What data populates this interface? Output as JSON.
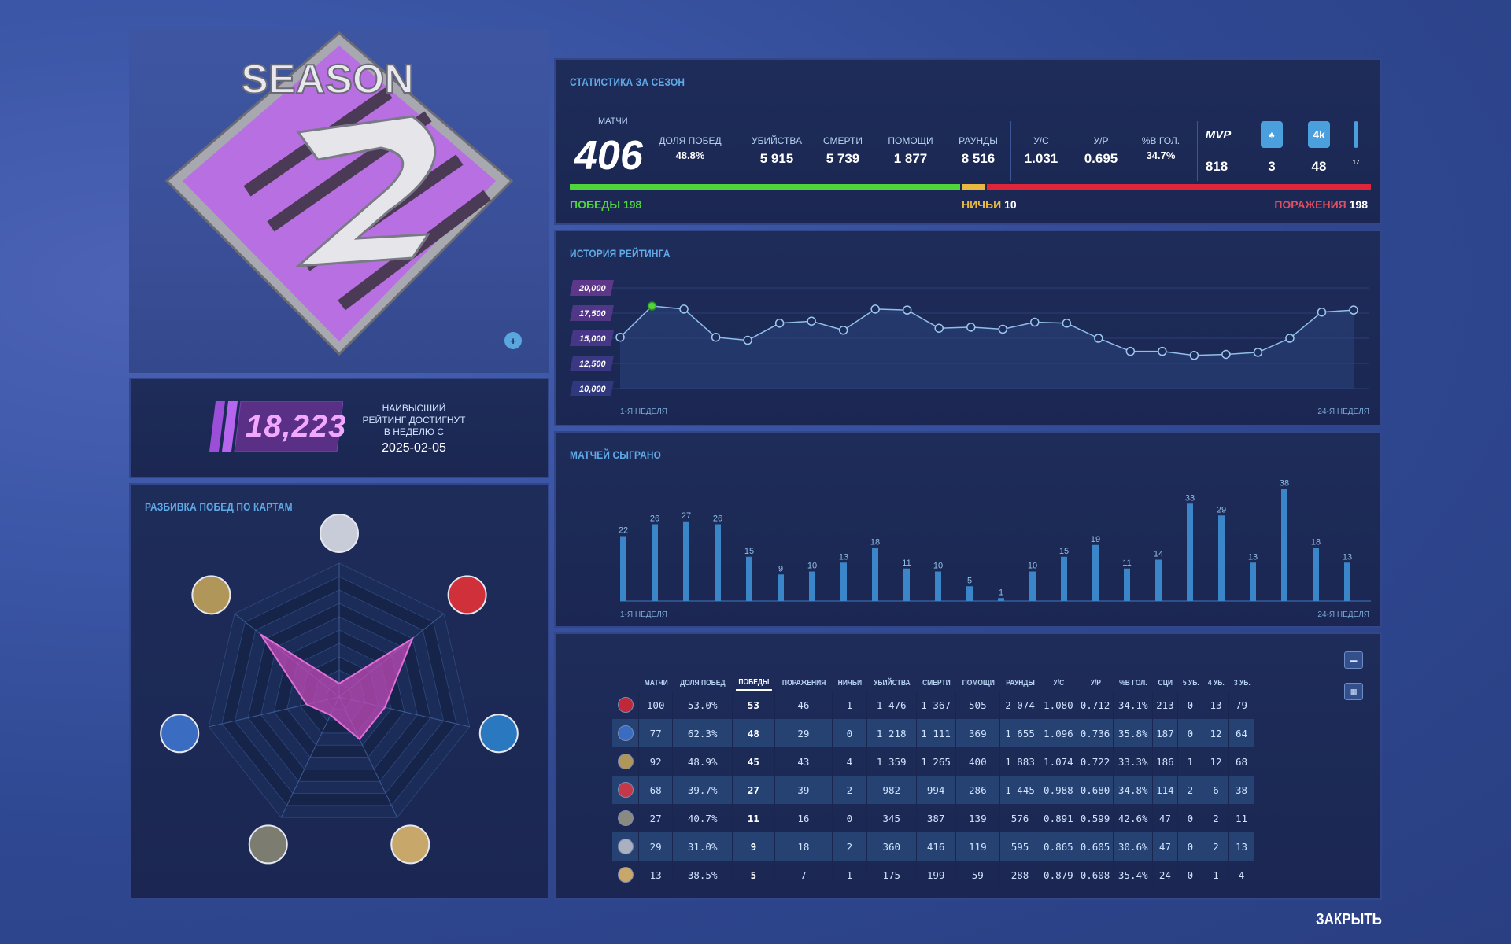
{
  "season": {
    "logo_text": "SEASON",
    "logo_digit": "2"
  },
  "rating": {
    "value": "18,223",
    "note_line1": "НАИВЫСШИЙ",
    "note_line2": "РЕЙТИНГ ДОСТИГНУТ",
    "note_line3": "В НЕДЕЛЮ С",
    "date": "2025-02-05"
  },
  "map_panel": {
    "title": "РАЗБИВКА ПОБЕД ПО КАРТАМ"
  },
  "stats": {
    "title": "СТАТИСТИКА ЗА СЕЗОН",
    "matches_label": "МАТЧИ",
    "matches": "406",
    "columns": [
      {
        "label": "ДОЛЯ ПОБЕД",
        "value": "48.8%"
      },
      {
        "label": "УБИЙСТВА",
        "value": "5 915"
      },
      {
        "label": "СМЕРТИ",
        "value": "5 739"
      },
      {
        "label": "ПОМОЩИ",
        "value": "1 877"
      },
      {
        "label": "РАУНДЫ",
        "value": "8 516"
      },
      {
        "label": "У/С",
        "value": "1.031"
      },
      {
        "label": "У/Р",
        "value": "0.695"
      },
      {
        "label": "%В ГОЛ.",
        "value": "34.7%"
      }
    ],
    "icons": [
      {
        "icon": "mvp-icon",
        "label": "MVP",
        "value": "818"
      },
      {
        "icon": "ace-spade-icon",
        "label": "♠",
        "value": "3"
      },
      {
        "icon": "four-kill-icon",
        "label": "4k",
        "value": "48"
      },
      {
        "icon": "extra-stat-icon",
        "label": "",
        "value": "17"
      }
    ],
    "wins_label": "ПОБЕДЫ",
    "wins": "198",
    "draws_label": "НИЧЬИ",
    "draws": "10",
    "losses_label": "ПОРАЖЕНИЯ",
    "losses": "198",
    "colors": {
      "win": "#4fd43a",
      "draw": "#e8b840",
      "loss": "#e0253a"
    }
  },
  "history": {
    "title": "ИСТОРИЯ РЕЙТИНГА",
    "start_label": "1-Я НЕДЕЛЯ",
    "end_label": "24-Я НЕДЕЛЯ"
  },
  "matches_chart": {
    "title": "МАТЧЕЙ СЫГРАНО",
    "start_label": "1-Я НЕДЕЛЯ",
    "end_label": "24-Я НЕДЕЛЯ"
  },
  "chart_data": [
    {
      "type": "line",
      "title": "ИСТОРИЯ РЕЙТИНГА",
      "y_ticks": [
        "20,000",
        "17,500",
        "15,000",
        "12,500",
        "10,000"
      ],
      "ylim": [
        10000,
        20000
      ],
      "x_start_label": "1-Я НЕДЕЛЯ",
      "x_end_label": "24-Я НЕДЕЛЯ",
      "values": [
        15100,
        18200,
        17900,
        15100,
        14800,
        16500,
        16700,
        15800,
        17900,
        17800,
        16000,
        16100,
        15900,
        16600,
        16500,
        15000,
        13700,
        13700,
        13300,
        13400,
        13600,
        15000,
        17600,
        17800
      ],
      "highlight_index": 1,
      "grid": true
    },
    {
      "type": "bar",
      "title": "МАТЧЕЙ СЫГРАНО",
      "x_start_label": "1-Я НЕДЕЛЯ",
      "x_end_label": "24-Я НЕДЕЛЯ",
      "values": [
        22,
        26,
        27,
        26,
        15,
        9,
        10,
        13,
        18,
        11,
        10,
        5,
        1,
        10,
        15,
        19,
        11,
        14,
        33,
        29,
        13,
        38,
        18,
        13
      ]
    },
    {
      "type": "radar",
      "title": "РАЗБИВКА ПОБЕД ПО КАРТАМ",
      "axes": [
        "map-1",
        "map-2",
        "map-3",
        "map-4",
        "map-5",
        "map-6",
        "map-7"
      ],
      "values": [
        0.1,
        0.7,
        0.35,
        0.35,
        0.15,
        0.25,
        0.75
      ]
    }
  ],
  "table": {
    "headers": [
      "МАТЧИ",
      "ДОЛЯ ПОБЕД",
      "ПОБЕДЫ",
      "ПОРАЖЕНИЯ",
      "НИЧЬИ",
      "УБИЙСТВА",
      "СМЕРТИ",
      "ПОМОЩИ",
      "РАУНДЫ",
      "У/С",
      "У/Р",
      "%В ГОЛ.",
      "СЦИ",
      "5 УБ.",
      "4 УБ.",
      "3 УБ."
    ],
    "rows": [
      {
        "map_color": "#c0283a",
        "cells": [
          "100",
          "53.0%",
          "53",
          "46",
          "1",
          "1 476",
          "1 367",
          "505",
          "2 074",
          "1.080",
          "0.712",
          "34.1%",
          "213",
          "0",
          "13",
          "79"
        ]
      },
      {
        "map_color": "#3a6cc2",
        "cells": [
          "77",
          "62.3%",
          "48",
          "29",
          "0",
          "1 218",
          "1 111",
          "369",
          "1 655",
          "1.096",
          "0.736",
          "35.8%",
          "187",
          "0",
          "12",
          "64"
        ]
      },
      {
        "map_color": "#b09658",
        "cells": [
          "92",
          "48.9%",
          "45",
          "43",
          "4",
          "1 359",
          "1 265",
          "400",
          "1 883",
          "1.074",
          "0.722",
          "33.3%",
          "186",
          "1",
          "12",
          "68"
        ]
      },
      {
        "map_color": "#c4384a",
        "cells": [
          "68",
          "39.7%",
          "27",
          "39",
          "2",
          "982",
          "994",
          "286",
          "1 445",
          "0.988",
          "0.680",
          "34.8%",
          "114",
          "2",
          "6",
          "38"
        ]
      },
      {
        "map_color": "#8a8a80",
        "cells": [
          "27",
          "40.7%",
          "11",
          "16",
          "0",
          "345",
          "387",
          "139",
          "576",
          "0.891",
          "0.599",
          "42.6%",
          "47",
          "0",
          "2",
          "11"
        ]
      },
      {
        "map_color": "#aab0c0",
        "cells": [
          "29",
          "31.0%",
          "9",
          "18",
          "2",
          "360",
          "416",
          "119",
          "595",
          "0.865",
          "0.605",
          "30.6%",
          "47",
          "0",
          "2",
          "13"
        ]
      },
      {
        "map_color": "#c8a86a",
        "cells": [
          "13",
          "38.5%",
          "5",
          "7",
          "1",
          "175",
          "199",
          "59",
          "288",
          "0.879",
          "0.608",
          "35.4%",
          "24",
          "0",
          "1",
          "4"
        ]
      }
    ],
    "side_buttons": [
      "list-view",
      "grid-view"
    ]
  },
  "close_label": "ЗАКРЫТЬ"
}
